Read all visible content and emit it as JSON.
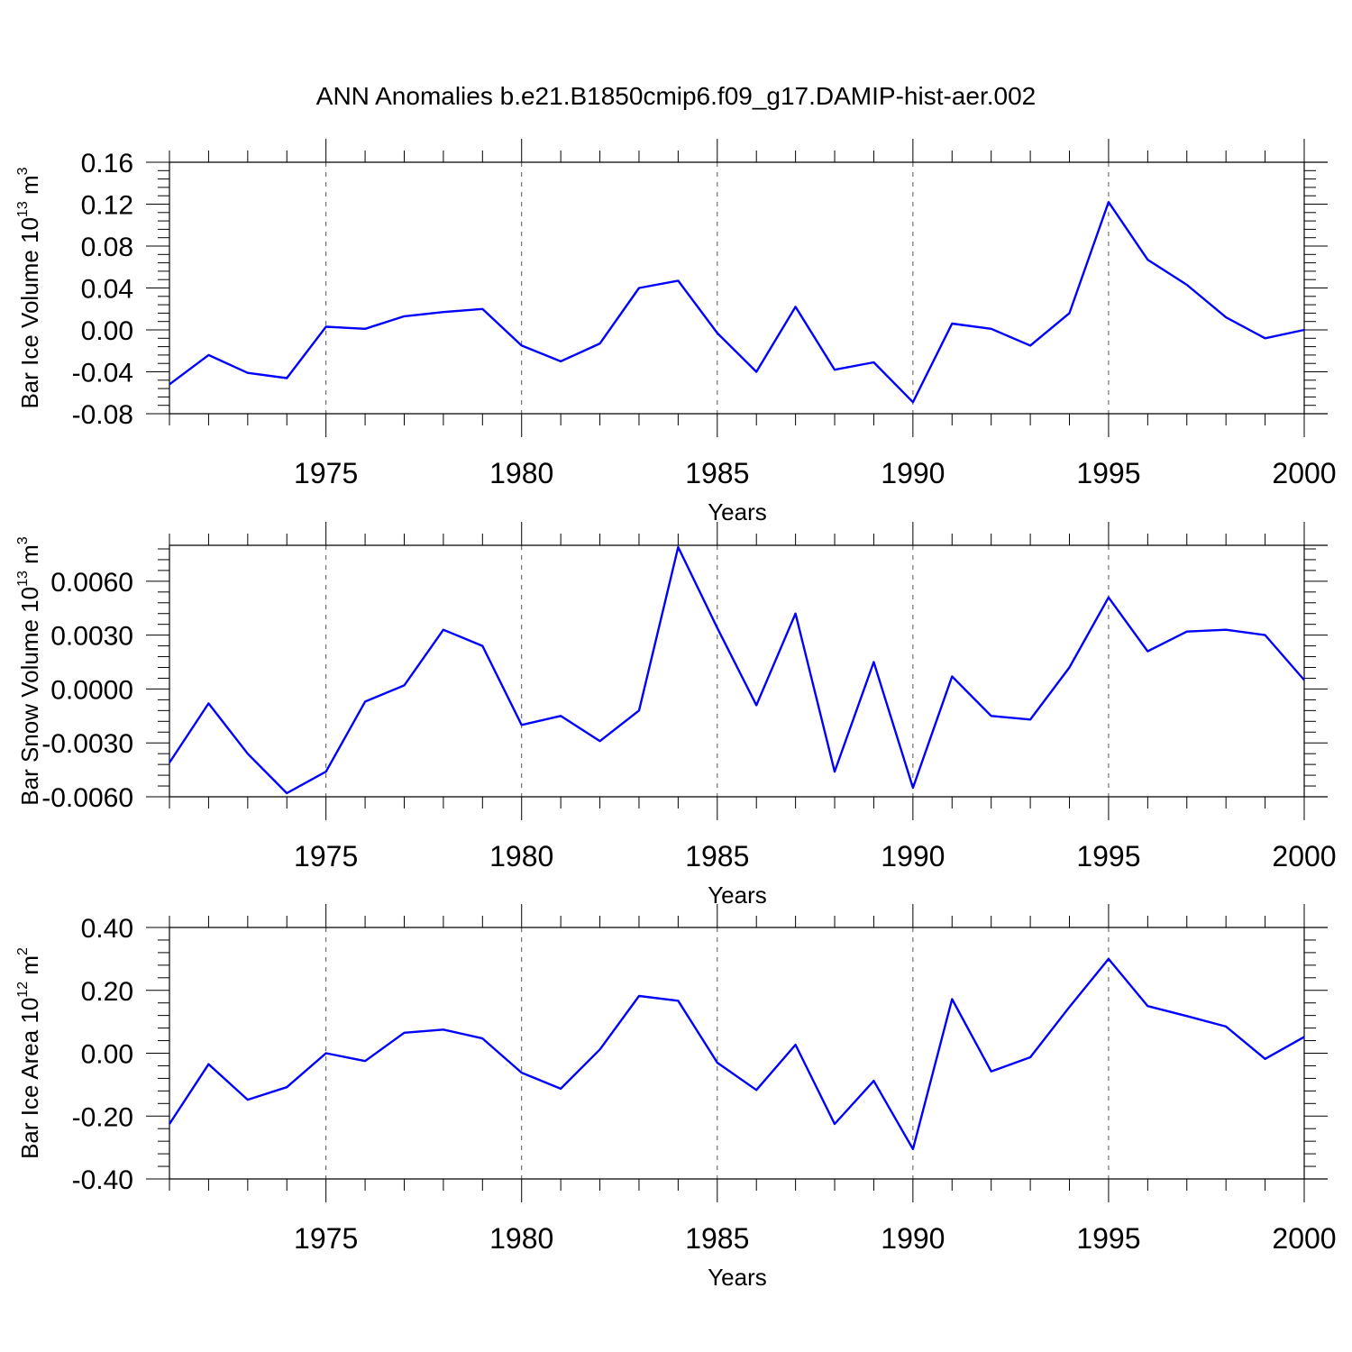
{
  "title": "ANN Anomalies b.e21.B1850cmip6.f09_g17.DAMIP-hist-aer.002",
  "colors": {
    "series": "#0000ff",
    "grid": "#555555",
    "axis": "#000000"
  },
  "chart_data": [
    {
      "type": "line",
      "ylabel": {
        "main": "Bar Ice Volume 10",
        "sup": "13",
        "unit": " m",
        "unit_sup": "3"
      },
      "xlabel": "Years",
      "xlim": [
        1971,
        2000
      ],
      "ylim": [
        -0.08,
        0.16
      ],
      "yticks": [
        -0.08,
        -0.04,
        0.0,
        0.04,
        0.08,
        0.12,
        0.16
      ],
      "ytick_labels": [
        "-0.08",
        "-0.04",
        "0.00",
        "0.04",
        "0.08",
        "0.12",
        "0.16"
      ],
      "xticks": [
        1975,
        1980,
        1985,
        1990,
        1995,
        2000
      ],
      "xtick_labels": [
        "1975",
        "1980",
        "1985",
        "1990",
        "1995",
        "2000"
      ],
      "grid": "x-dashed",
      "x": [
        1971,
        1972,
        1973,
        1974,
        1975,
        1976,
        1977,
        1978,
        1979,
        1980,
        1981,
        1982,
        1983,
        1984,
        1985,
        1986,
        1987,
        1988,
        1989,
        1990,
        1991,
        1992,
        1993,
        1994,
        1995,
        1996,
        1997,
        1998,
        1999,
        2000
      ],
      "values": [
        -0.052,
        -0.024,
        -0.041,
        -0.046,
        0.003,
        0.001,
        0.013,
        0.017,
        0.02,
        -0.015,
        -0.03,
        -0.013,
        0.04,
        0.047,
        -0.003,
        -0.04,
        0.022,
        -0.038,
        -0.031,
        -0.069,
        0.006,
        0.001,
        -0.015,
        0.016,
        0.122,
        0.067,
        0.043,
        0.012,
        -0.008,
        0.0
      ]
    },
    {
      "type": "line",
      "ylabel": {
        "main": "Bar Snow Volume 10",
        "sup": "13",
        "unit": " m",
        "unit_sup": "3"
      },
      "xlabel": "Years",
      "xlim": [
        1971,
        2000
      ],
      "ylim": [
        -0.006,
        0.008
      ],
      "yticks": [
        -0.006,
        -0.003,
        0.0,
        0.003,
        0.006
      ],
      "ytick_labels": [
        "-0.0060",
        "-0.0030",
        "0.0000",
        "0.0030",
        "0.0060"
      ],
      "xticks": [
        1975,
        1980,
        1985,
        1990,
        1995,
        2000
      ],
      "xtick_labels": [
        "1975",
        "1980",
        "1985",
        "1990",
        "1995",
        "2000"
      ],
      "grid": "x-dashed",
      "x": [
        1971,
        1972,
        1973,
        1974,
        1975,
        1976,
        1977,
        1978,
        1979,
        1980,
        1981,
        1982,
        1983,
        1984,
        1985,
        1986,
        1987,
        1988,
        1989,
        1990,
        1991,
        1992,
        1993,
        1994,
        1995,
        1996,
        1997,
        1998,
        1999,
        2000
      ],
      "values": [
        -0.0041,
        -0.0008,
        -0.0036,
        -0.0058,
        -0.0046,
        -0.0007,
        0.0002,
        0.0033,
        0.0024,
        -0.002,
        -0.0015,
        -0.0029,
        -0.0012,
        0.0079,
        0.0034,
        -0.0009,
        0.0042,
        -0.0046,
        0.0015,
        -0.0055,
        0.0007,
        -0.0015,
        -0.0017,
        0.0012,
        0.0051,
        0.0021,
        0.0032,
        0.0033,
        0.003,
        0.0005
      ]
    },
    {
      "type": "line",
      "ylabel": {
        "main": "Bar Ice Area 10",
        "sup": "12",
        "unit": " m",
        "unit_sup": "2"
      },
      "xlabel": "Years",
      "xlim": [
        1971,
        2000
      ],
      "ylim": [
        -0.4,
        0.4
      ],
      "yticks": [
        -0.4,
        -0.2,
        0.0,
        0.2,
        0.4
      ],
      "ytick_labels": [
        "-0.40",
        "-0.20",
        "0.00",
        "0.20",
        "0.40"
      ],
      "xticks": [
        1975,
        1980,
        1985,
        1990,
        1995,
        2000
      ],
      "xtick_labels": [
        "1975",
        "1980",
        "1985",
        "1990",
        "1995",
        "2000"
      ],
      "grid": "x-dashed",
      "x": [
        1971,
        1972,
        1973,
        1974,
        1975,
        1976,
        1977,
        1978,
        1979,
        1980,
        1981,
        1982,
        1983,
        1984,
        1985,
        1986,
        1987,
        1988,
        1989,
        1990,
        1991,
        1992,
        1993,
        1994,
        1995,
        1996,
        1997,
        1998,
        1999,
        2000
      ],
      "values": [
        -0.225,
        -0.035,
        -0.148,
        -0.108,
        0.0,
        -0.025,
        0.065,
        0.075,
        0.047,
        -0.062,
        -0.113,
        0.012,
        0.182,
        0.167,
        -0.03,
        -0.117,
        0.027,
        -0.225,
        -0.088,
        -0.305,
        0.172,
        -0.058,
        -0.013,
        0.147,
        0.3,
        0.15,
        0.118,
        0.085,
        -0.018,
        0.052
      ]
    }
  ]
}
